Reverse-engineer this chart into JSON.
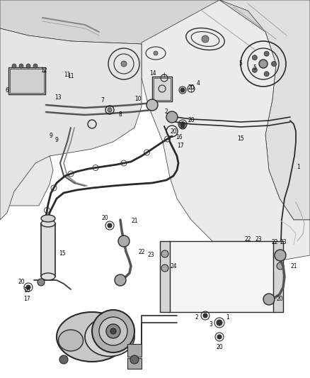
{
  "bg_color": "#ffffff",
  "line_color": "#2a2a2a",
  "label_color": "#000000",
  "figsize": [
    4.38,
    5.33
  ],
  "dpi": 100,
  "lw_main": 1.0,
  "lw_thick": 2.0,
  "lw_thin": 0.6
}
